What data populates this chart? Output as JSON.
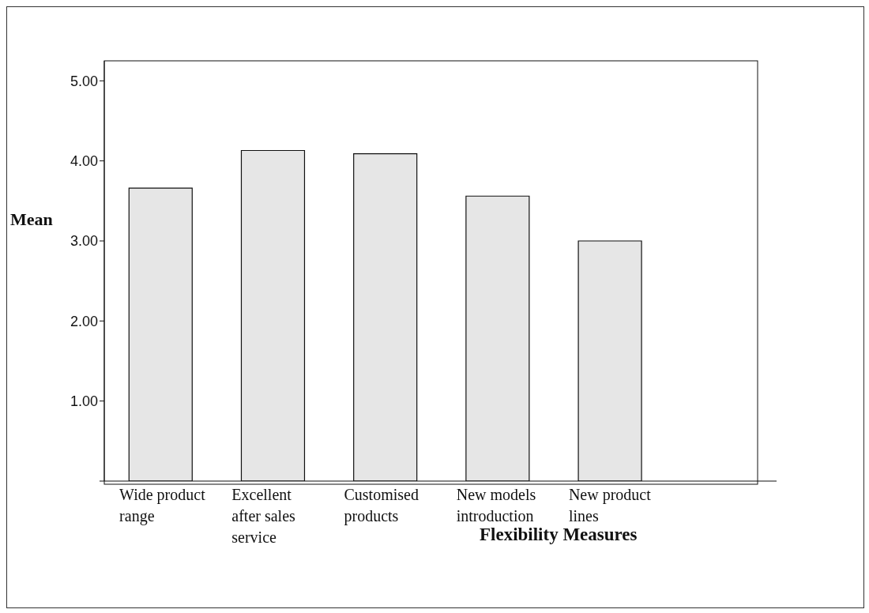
{
  "chart_data": {
    "type": "bar",
    "xlabel": "Flexibility Measures",
    "ylabel": "Mean",
    "categories": [
      "Wide product range",
      "Excellent after sales service",
      "Customised products",
      "New models introduction",
      "New product lines"
    ],
    "values": [
      3.66,
      4.13,
      4.09,
      3.56,
      3.0
    ],
    "color": "#e6e6e6",
    "ylim": [
      0,
      5.25
    ],
    "yticks": [
      {
        "value": 0,
        "label": null
      },
      {
        "value": 1,
        "label": "1.00"
      },
      {
        "value": 2,
        "label": "2.00"
      },
      {
        "value": 3,
        "label": "3.00"
      },
      {
        "value": 4,
        "label": "4.00"
      },
      {
        "value": 5,
        "label": "5.00"
      }
    ],
    "grid": false,
    "legend": false
  }
}
